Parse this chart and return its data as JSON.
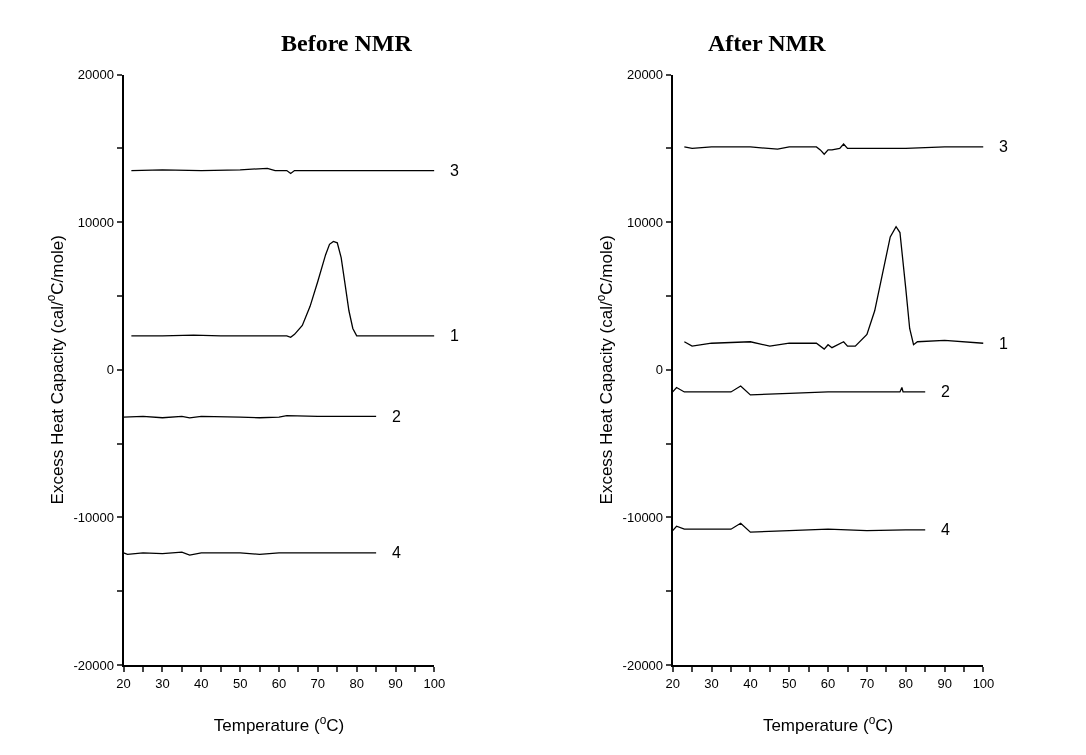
{
  "chart_data": [
    {
      "type": "line",
      "title": "Before NMR",
      "xlabel": "Temperature ($^{o}$C)",
      "ylabel": "Excess Heat Capacity (cal/$^{o}$C/mole)",
      "xlim": [
        20,
        100
      ],
      "ylim": [
        -20000,
        20000
      ],
      "xticks": [
        20,
        {
          "value": 25,
          "label": null
        },
        30,
        {
          "value": 35,
          "label": null
        },
        40,
        {
          "value": 45,
          "label": null
        },
        50,
        {
          "value": 55,
          "label": null
        },
        60,
        {
          "value": 65,
          "label": null
        },
        70,
        {
          "value": 75,
          "label": null
        },
        80,
        {
          "value": 85,
          "label": null
        },
        90,
        {
          "value": 95,
          "label": null
        },
        100
      ],
      "yticks": [
        -20000,
        {
          "value": -15000,
          "label": null
        },
        -10000,
        {
          "value": -5000,
          "label": null
        },
        0,
        {
          "value": 5000,
          "label": null
        },
        10000,
        {
          "value": 15000,
          "label": null
        },
        20000
      ],
      "legend": false,
      "marker": "none",
      "line_style": "solid",
      "series": [
        {
          "name": "3",
          "color": "#000000",
          "x": [
            22,
            30,
            40,
            50,
            57,
            59,
            62,
            63,
            64,
            70,
            80,
            90,
            100
          ],
          "values": [
            13500,
            13550,
            13500,
            13550,
            13650,
            13500,
            13500,
            13300,
            13500,
            13500,
            13500,
            13500,
            13500
          ]
        },
        {
          "name": "1",
          "color": "#000000",
          "x": [
            22,
            30,
            38,
            45,
            55,
            62,
            63,
            64,
            66,
            68,
            70,
            72,
            73,
            74,
            75,
            76,
            77,
            78,
            79,
            80,
            85,
            100
          ],
          "values": [
            2300,
            2300,
            2350,
            2300,
            2300,
            2300,
            2200,
            2400,
            3000,
            4300,
            6000,
            7800,
            8500,
            8700,
            8600,
            7600,
            5800,
            4000,
            2800,
            2300,
            2300,
            2300
          ]
        },
        {
          "name": "2",
          "color": "#000000",
          "x": [
            20,
            25,
            30,
            35,
            37,
            40,
            50,
            55,
            60,
            62,
            70,
            80,
            85
          ],
          "values": [
            -3200,
            -3150,
            -3250,
            -3150,
            -3250,
            -3150,
            -3200,
            -3250,
            -3200,
            -3100,
            -3150,
            -3150,
            -3150
          ]
        },
        {
          "name": "4",
          "color": "#000000",
          "x": [
            20,
            21,
            25,
            30,
            35,
            37,
            40,
            50,
            55,
            60,
            70,
            80,
            85
          ],
          "values": [
            -12400,
            -12500,
            -12400,
            -12450,
            -12350,
            -12550,
            -12400,
            -12400,
            -12500,
            -12400,
            -12400,
            -12400,
            -12400
          ]
        }
      ]
    },
    {
      "type": "line",
      "title": "After NMR",
      "xlabel": "Temperature ($^{o}$C)",
      "ylabel": "Excess Heat Capacity (cal/$^{o}$C/mole)",
      "xlim": [
        20,
        100
      ],
      "ylim": [
        -20000,
        20000
      ],
      "xticks": [
        20,
        {
          "value": 25,
          "label": null
        },
        30,
        {
          "value": 35,
          "label": null
        },
        40,
        {
          "value": 45,
          "label": null
        },
        50,
        {
          "value": 55,
          "label": null
        },
        60,
        {
          "value": 65,
          "label": null
        },
        70,
        {
          "value": 75,
          "label": null
        },
        80,
        {
          "value": 85,
          "label": null
        },
        90,
        {
          "value": 95,
          "label": null
        },
        100
      ],
      "yticks": [
        -20000,
        {
          "value": -15000,
          "label": null
        },
        -10000,
        {
          "value": -5000,
          "label": null
        },
        0,
        {
          "value": 5000,
          "label": null
        },
        10000,
        {
          "value": 15000,
          "label": null
        },
        20000
      ],
      "legend": false,
      "marker": "none",
      "line_style": "solid",
      "series": [
        {
          "name": "3",
          "color": "#000000",
          "x": [
            23,
            25,
            30,
            40,
            47,
            50,
            57,
            58,
            59,
            60,
            61,
            63,
            64,
            65,
            70,
            80,
            90,
            100
          ],
          "values": [
            15100,
            15000,
            15100,
            15100,
            14950,
            15100,
            15100,
            14900,
            14600,
            14900,
            14900,
            15000,
            15300,
            15000,
            15000,
            15000,
            15100,
            15100
          ]
        },
        {
          "name": "1",
          "color": "#000000",
          "x": [
            23,
            25,
            30,
            40,
            45,
            50,
            57,
            59,
            60,
            61,
            64,
            65,
            67,
            70,
            72,
            74,
            76,
            77.5,
            78.5,
            80,
            81,
            82,
            83,
            90,
            100
          ],
          "values": [
            1900,
            1600,
            1800,
            1900,
            1600,
            1800,
            1800,
            1400,
            1700,
            1500,
            1900,
            1600,
            1600,
            2400,
            4000,
            6500,
            9000,
            9700,
            9300,
            5500,
            2800,
            1700,
            1900,
            2000,
            1800
          ]
        },
        {
          "name": "2",
          "color": "#000000",
          "x": [
            20,
            21,
            23,
            30,
            35,
            37.5,
            40,
            50,
            60,
            70,
            78.5,
            79,
            79.3,
            85
          ],
          "values": [
            -1500,
            -1200,
            -1500,
            -1500,
            -1500,
            -1100,
            -1700,
            -1600,
            -1500,
            -1500,
            -1500,
            -1200,
            -1500,
            -1500
          ]
        },
        {
          "name": "4",
          "color": "#000000",
          "x": [
            20,
            21,
            23,
            30,
            35,
            37.5,
            40,
            50,
            60,
            70,
            80,
            85
          ],
          "values": [
            -10900,
            -10600,
            -10800,
            -10800,
            -10800,
            -10400,
            -11000,
            -10900,
            -10800,
            -10900,
            -10850,
            -10850
          ]
        }
      ]
    }
  ]
}
